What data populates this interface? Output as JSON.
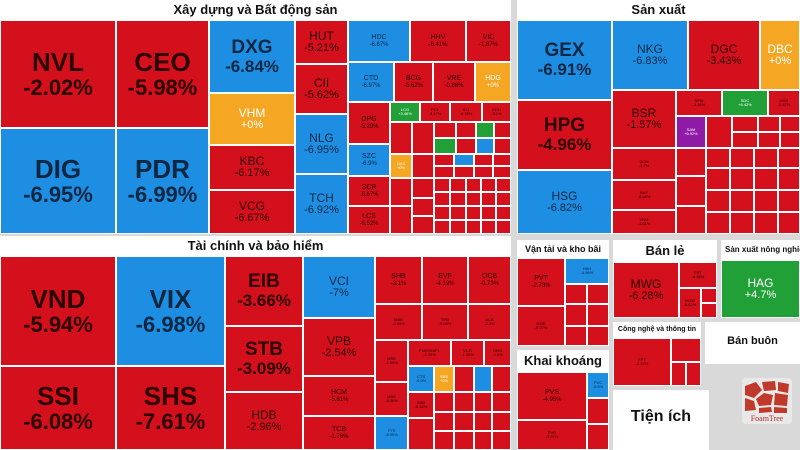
{
  "sectors": {
    "xaydung": {
      "title": "Xây dựng và Bất động sản",
      "stocks": [
        {
          "sym": "NVL",
          "pct": "-2.02%",
          "color": "red"
        },
        {
          "sym": "CEO",
          "pct": "-5.98%",
          "color": "red"
        },
        {
          "sym": "DIG",
          "pct": "-6.95%",
          "color": "blue"
        },
        {
          "sym": "PDR",
          "pct": "-6.99%",
          "color": "blue"
        },
        {
          "sym": "DXG",
          "pct": "-6.84%",
          "color": "blue"
        },
        {
          "sym": "VHM",
          "pct": "+0%",
          "color": "orange"
        },
        {
          "sym": "KBC",
          "pct": "-6.17%",
          "color": "red"
        },
        {
          "sym": "VCG",
          "pct": "-6.67%",
          "color": "red"
        },
        {
          "sym": "HUT",
          "pct": "-5.21%",
          "color": "red"
        },
        {
          "sym": "CII",
          "pct": "-5.62%",
          "color": "red"
        },
        {
          "sym": "NLG",
          "pct": "-6.95%",
          "color": "blue"
        },
        {
          "sym": "TCH",
          "pct": "-6.92%",
          "color": "blue"
        },
        {
          "sym": "HDC",
          "pct": "-6.87%",
          "color": "blue"
        },
        {
          "sym": "HHV",
          "pct": "-6.41%",
          "color": "red"
        },
        {
          "sym": "VIC",
          "pct": "-1.87%",
          "color": "red"
        },
        {
          "sym": "CTD",
          "pct": "-6.97%",
          "color": "blue"
        },
        {
          "sym": "BCG",
          "pct": "-5.62%",
          "color": "red"
        },
        {
          "sym": "VRE",
          "pct": "-0.88%",
          "color": "red"
        },
        {
          "sym": "HDG",
          "pct": "+0%",
          "color": "orange"
        },
        {
          "sym": "DPG",
          "pct": "-5.29%",
          "color": "red"
        },
        {
          "sym": "LCG",
          "pct": "+3.46%",
          "color": "green"
        },
        {
          "sym": "PC1",
          "pct": "-3.17%",
          "color": "red"
        },
        {
          "sym": "IDJ",
          "pct": "-6.76%",
          "color": "red"
        },
        {
          "sym": "KDH",
          "pct": "-3.1%",
          "color": "red"
        },
        {
          "sym": "SZC",
          "pct": "-6.9%",
          "color": "blue"
        },
        {
          "sym": "SCR",
          "pct": "-6.67%",
          "color": "red"
        },
        {
          "sym": "LCS",
          "pct": "-6.52%",
          "color": "red"
        },
        {
          "sym": "DXS",
          "pct": "+0%",
          "color": "orange"
        }
      ]
    },
    "sanxuat": {
      "title": "Sản xuất",
      "stocks": [
        {
          "sym": "GEX",
          "pct": "-6.91%",
          "color": "blue"
        },
        {
          "sym": "NKG",
          "pct": "-6.83%",
          "color": "blue"
        },
        {
          "sym": "DGC",
          "pct": "-3.43%",
          "color": "red"
        },
        {
          "sym": "DBC",
          "pct": "+0%",
          "color": "orange"
        },
        {
          "sym": "HPG",
          "pct": "-4.96%",
          "color": "red"
        },
        {
          "sym": "BSR",
          "pct": "-1.57%",
          "color": "red"
        },
        {
          "sym": "HSG",
          "pct": "-6.82%",
          "color": "blue"
        },
        {
          "sym": "DPM",
          "pct": "-3.16%",
          "color": "red"
        },
        {
          "sym": "SDC",
          "pct": "+6.42%",
          "color": "green"
        },
        {
          "sym": "MSR",
          "pct": "-2.47%",
          "color": "red"
        },
        {
          "sym": "SAM",
          "pct": "+6.92%",
          "color": "purple"
        },
        {
          "sym": "DCM",
          "pct": "-3.7%",
          "color": "red"
        },
        {
          "sym": "BAF",
          "pct": "-6.68%",
          "color": "red"
        },
        {
          "sym": "VNM",
          "pct": "-1.61%",
          "color": "red"
        }
      ]
    },
    "taichinh": {
      "title": "Tài chính và bảo hiểm",
      "stocks": [
        {
          "sym": "VND",
          "pct": "-5.94%",
          "color": "red"
        },
        {
          "sym": "VIX",
          "pct": "-6.98%",
          "color": "blue"
        },
        {
          "sym": "SSI",
          "pct": "-6.08%",
          "color": "red"
        },
        {
          "sym": "SHS",
          "pct": "-7.61%",
          "color": "red"
        },
        {
          "sym": "EIB",
          "pct": "-3.66%",
          "color": "red"
        },
        {
          "sym": "STB",
          "pct": "-3.09%",
          "color": "red"
        },
        {
          "sym": "HDB",
          "pct": "-2.96%",
          "color": "red"
        },
        {
          "sym": "VCI",
          "pct": "-7%",
          "color": "blue"
        },
        {
          "sym": "VPB",
          "pct": "-2.54%",
          "color": "red"
        },
        {
          "sym": "HCM",
          "pct": "-5.61%",
          "color": "red"
        },
        {
          "sym": "TCB",
          "pct": "-1.78%",
          "color": "red"
        },
        {
          "sym": "SHB",
          "pct": "-3.1%",
          "color": "red"
        },
        {
          "sym": "EVF",
          "pct": "-4.19%",
          "color": "red"
        },
        {
          "sym": "OCB",
          "pct": "-0.73%",
          "color": "red"
        },
        {
          "sym": "MBB",
          "pct": "-0.63%",
          "color": "red"
        },
        {
          "sym": "TPB",
          "pct": "-0.58%",
          "color": "red"
        },
        {
          "sym": "ACB",
          "pct": "-2.3%",
          "color": "red"
        },
        {
          "sym": "MSB",
          "pct": "-1.53%",
          "color": "red"
        },
        {
          "sym": "FUESSVFL",
          "pct": "-2.34%",
          "color": "red"
        },
        {
          "sym": "VCG",
          "pct": "-1.35%",
          "color": "red"
        },
        {
          "sym": "DMS",
          "pct": "-2.6%",
          "color": "red"
        },
        {
          "sym": "MBS",
          "pct": "-9.56%",
          "color": "red"
        },
        {
          "sym": "CTS",
          "pct": "-6.9%",
          "color": "blue"
        },
        {
          "sym": "FTS",
          "pct": "-6.95%",
          "color": "blue"
        },
        {
          "sym": "SSB",
          "pct": "-6.34%",
          "color": "red"
        },
        {
          "sym": "SBS",
          "pct": "+0%",
          "color": "orange"
        }
      ]
    },
    "vantai": {
      "title": "Vận tải và kho bãi",
      "stocks": [
        {
          "sym": "PVT",
          "pct": "-2.73%",
          "color": "red"
        },
        {
          "sym": "GMD",
          "pct": "-5.27%",
          "color": "red"
        },
        {
          "sym": "HAH",
          "pct": "-6.96%",
          "color": "blue"
        }
      ]
    },
    "banle": {
      "title": "Bán lẻ",
      "stocks": [
        {
          "sym": "MWG",
          "pct": "-6.28%",
          "color": "red"
        },
        {
          "sym": "FRT",
          "pct": "-6.98%",
          "color": "red"
        },
        {
          "sym": "DGW",
          "pct": "-6.62%",
          "color": "red"
        }
      ]
    },
    "nongnghiep": {
      "title": "Sản xuất nông nghiệ",
      "stocks": [
        {
          "sym": "HAG",
          "pct": "+4.7%",
          "color": "green"
        }
      ]
    },
    "khaikhoang": {
      "title": "Khai khoáng",
      "stocks": [
        {
          "sym": "PVS",
          "pct": "-4.95%",
          "color": "red"
        },
        {
          "sym": "PVD",
          "pct": "-3.97%",
          "color": "red"
        },
        {
          "sym": "PVC",
          "pct": "-6.9%",
          "color": "blue"
        }
      ]
    },
    "congnghe": {
      "title": "Công nghệ và thông tin",
      "stocks": [
        {
          "sym": "FPT",
          "pct": "-2.37%",
          "color": "red"
        }
      ]
    },
    "banbuon": {
      "title": "Bán buôn"
    },
    "tienich": {
      "title": "Tiện ích"
    }
  },
  "logo": {
    "text": "FoamTree"
  },
  "colors": {
    "down": "#d4101c",
    "floor": "#1e8ee3",
    "ref": "#f5a623",
    "up": "#21a038",
    "ceiling": "#8e1aa6"
  }
}
